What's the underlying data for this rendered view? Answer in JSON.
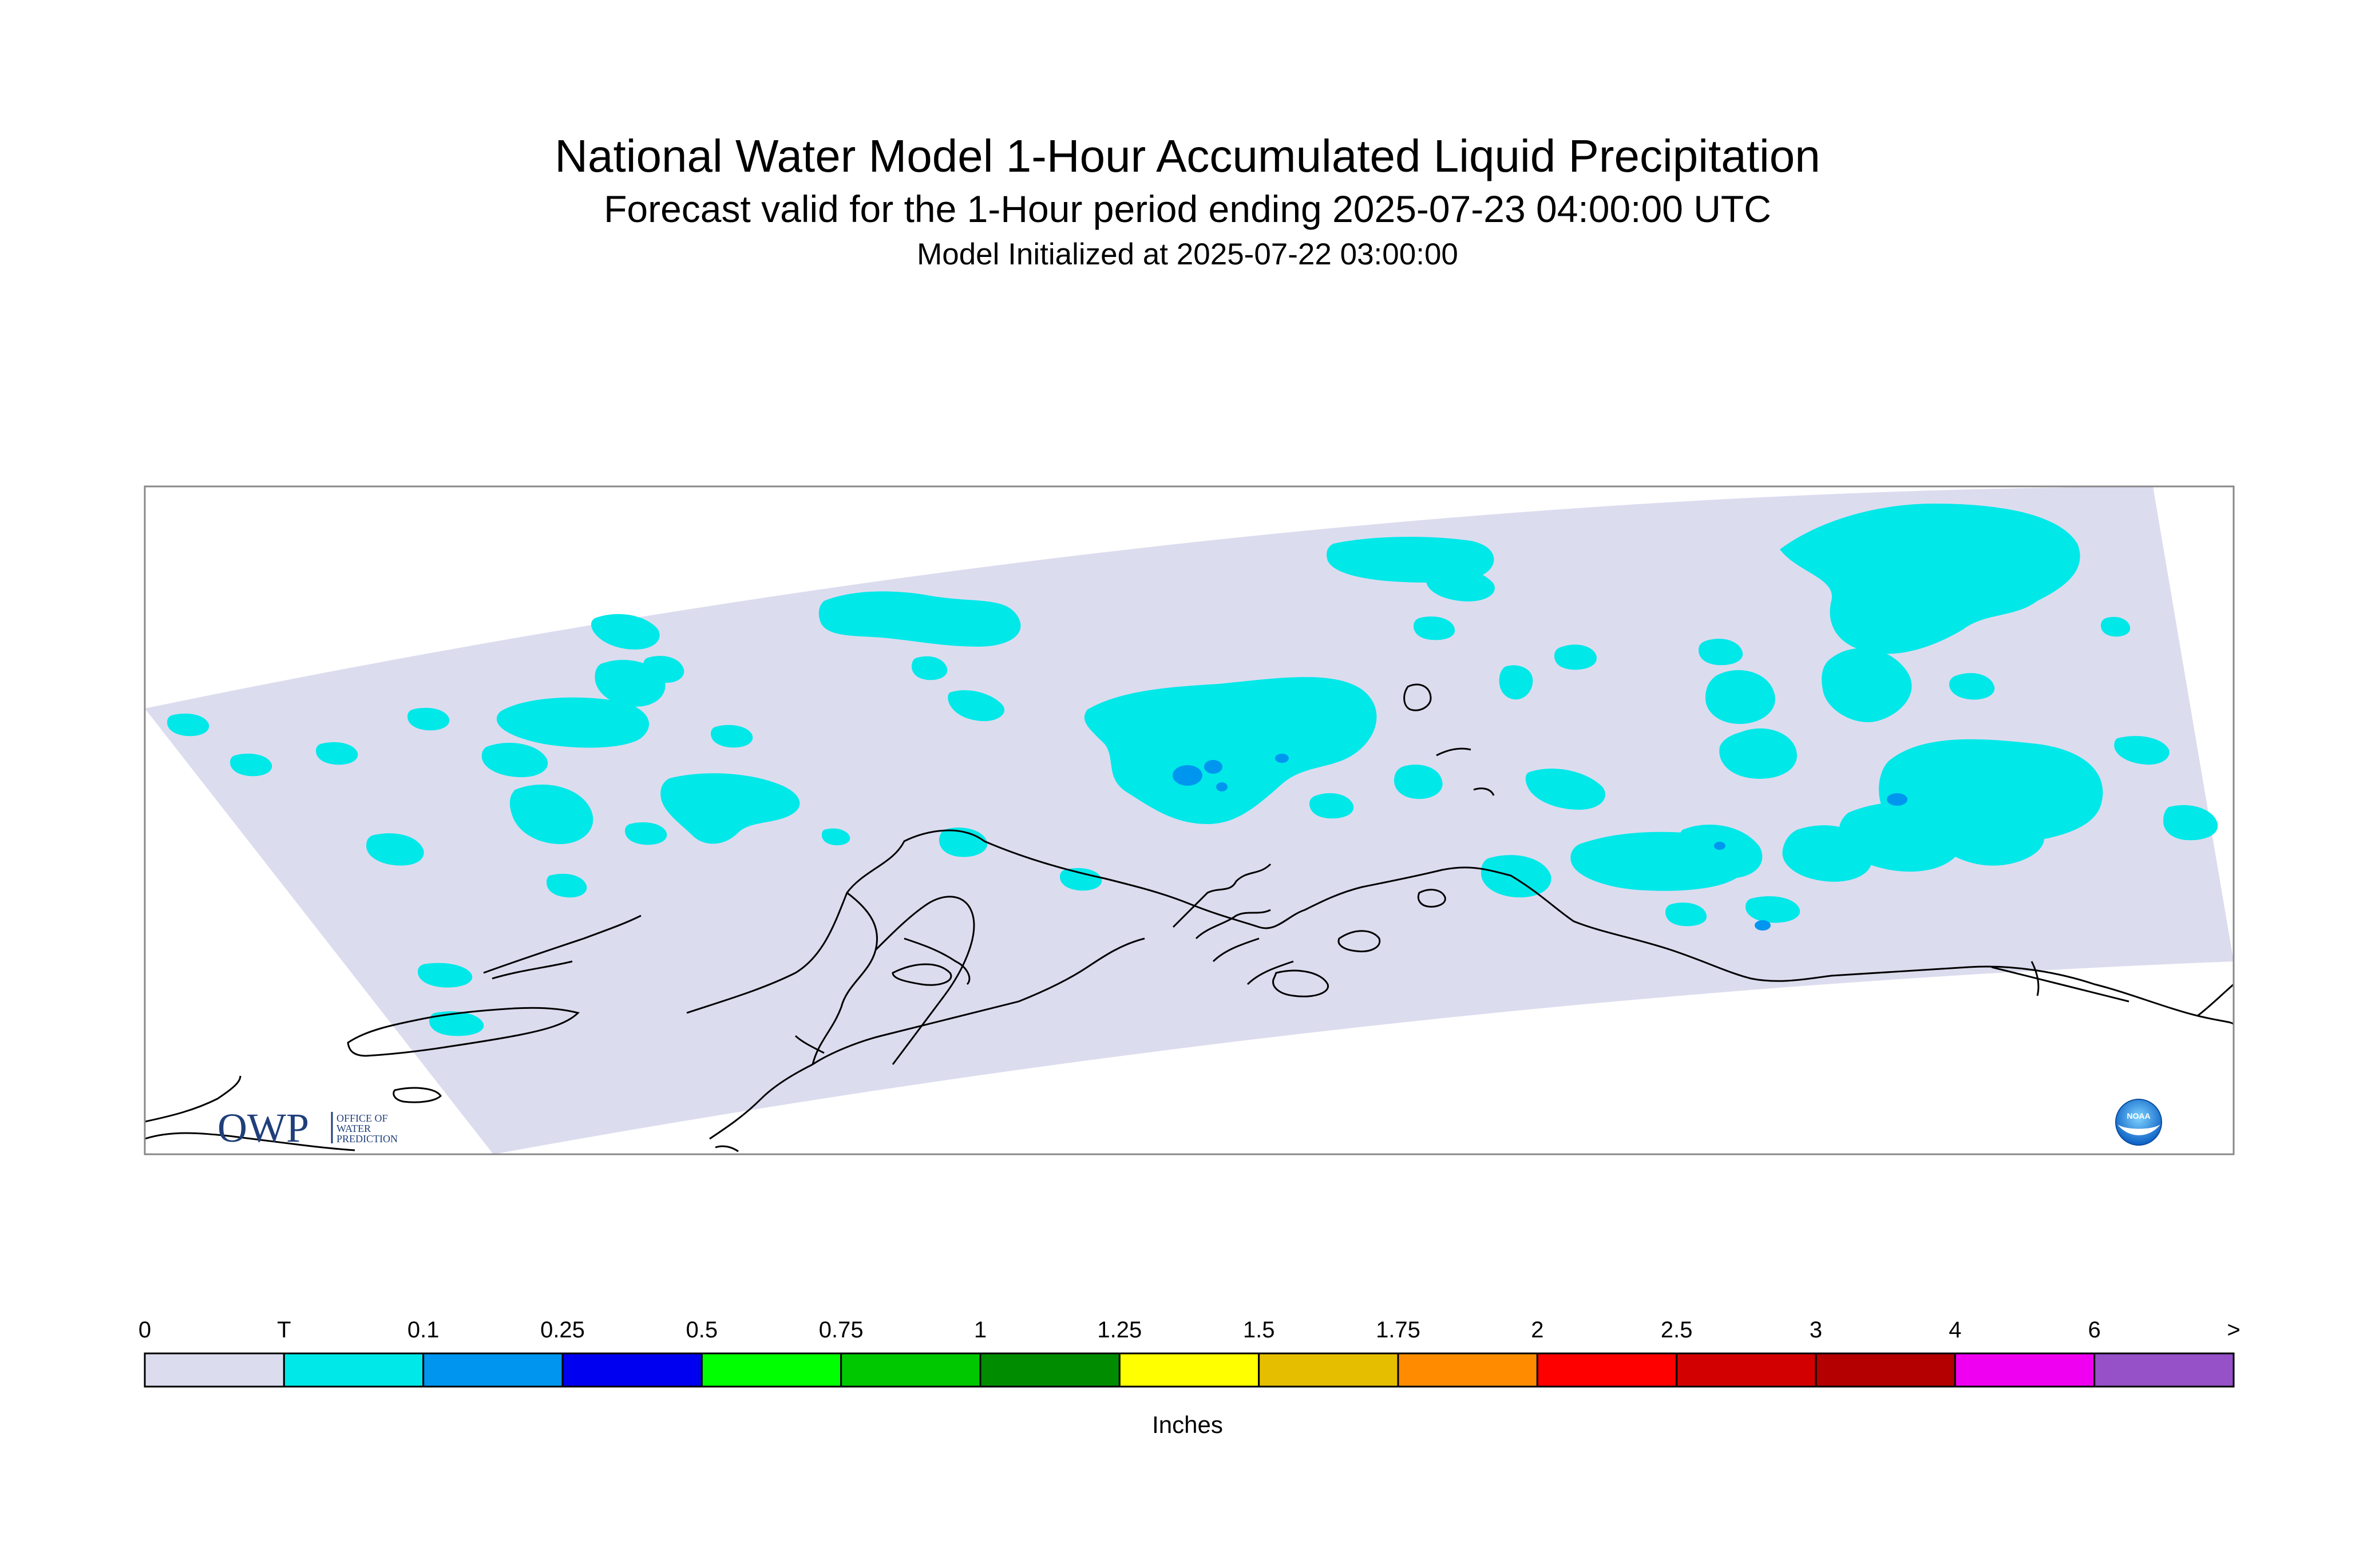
{
  "header": {
    "title": "National Water Model 1-Hour Accumulated Liquid Precipitation",
    "subtitle": "Forecast valid for the 1-Hour period ending 2025-07-23 04:00:00 UTC",
    "init_line": "Model Initialized at 2025-07-22 03:00:00"
  },
  "logos": {
    "owp_text": "OWP",
    "owp_sub": [
      "OFFICE OF",
      "WATER",
      "PREDICTION"
    ],
    "noaa_text": "NOAA"
  },
  "colors": {
    "domain": "#dcdcef",
    "trace": "#00e8e8",
    "light_blue": "#0096f0",
    "coast": "#000000",
    "frame": "#888888"
  },
  "legend": {
    "units": "Inches",
    "labels": [
      "0",
      "T",
      "0.1",
      "0.25",
      "0.5",
      "0.75",
      "1",
      "1.25",
      "1.5",
      "1.75",
      "2",
      "2.5",
      "3",
      "4",
      "6",
      ">"
    ],
    "colors": [
      "#dcdcef",
      "#00e8e8",
      "#0096f0",
      "#0000f0",
      "#00ff00",
      "#00c800",
      "#008c00",
      "#ffff00",
      "#e6be00",
      "#ff8c00",
      "#ff0000",
      "#d20000",
      "#b40000",
      "#f000f0",
      "#9650c8"
    ]
  }
}
